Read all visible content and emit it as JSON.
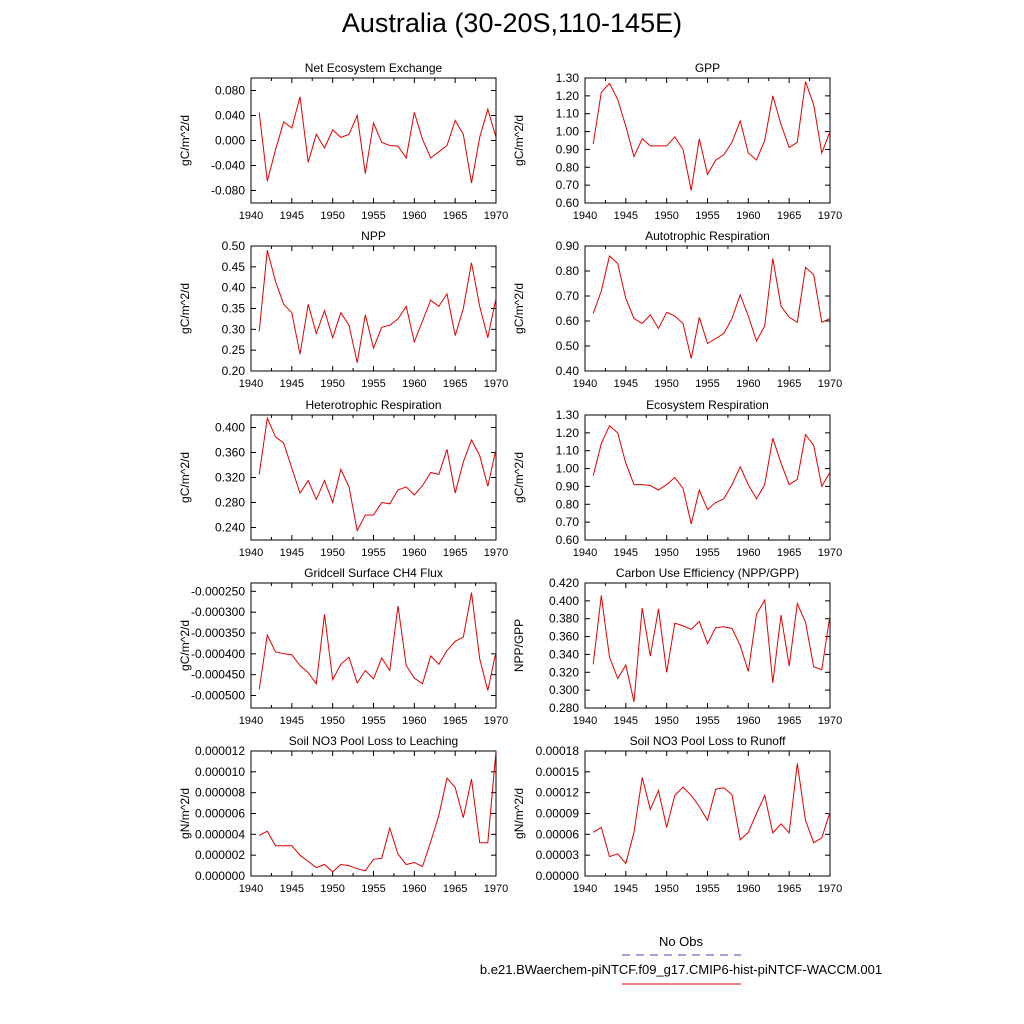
{
  "figure": {
    "title": "Australia (30-20S,110-145E)"
  },
  "legend": {
    "obs_label": "No Obs",
    "obs_color": "#4a4aa8",
    "model_label": "b.e21.BWaerchem-piNTCF.f09_g17.CMIP6-hist-piNTCF-WACCM.001",
    "model_color": "#e00000"
  },
  "chart_data": [
    {
      "type": "line",
      "title": "Net Ecosystem Exchange",
      "ylabel": "gC/m^2/d",
      "xlim": [
        1940,
        1970
      ],
      "ylim": [
        -0.1,
        0.1
      ],
      "xticks": [
        1940,
        1945,
        1950,
        1955,
        1960,
        1965,
        1970
      ],
      "yticks": [
        "0.080",
        "0.040",
        "0.000",
        "-0.040",
        "-0.080"
      ],
      "x": [
        1941,
        1942,
        1943,
        1944,
        1945,
        1946,
        1947,
        1948,
        1949,
        1950,
        1951,
        1952,
        1953,
        1954,
        1955,
        1956,
        1957,
        1958,
        1959,
        1960,
        1961,
        1962,
        1963,
        1964,
        1965,
        1966,
        1967,
        1968,
        1969,
        1970
      ],
      "series": [
        {
          "color": "#e00000",
          "values": [
            0.045,
            -0.065,
            -0.015,
            0.03,
            0.02,
            0.07,
            -0.035,
            0.01,
            -0.012,
            0.017,
            0.005,
            0.01,
            0.04,
            -0.053,
            0.028,
            -0.003,
            -0.008,
            -0.009,
            -0.028,
            0.045,
            0.002,
            -0.028,
            -0.018,
            -0.008,
            0.032,
            0.01,
            -0.068,
            0.005,
            0.05,
            0.005
          ]
        }
      ]
    },
    {
      "type": "line",
      "title": "GPP",
      "ylabel": "gC/m^2/d",
      "xlim": [
        1940,
        1970
      ],
      "ylim": [
        0.6,
        1.3
      ],
      "xticks": [
        1940,
        1945,
        1950,
        1955,
        1960,
        1965,
        1970
      ],
      "yticks": [
        "1.30",
        "1.20",
        "1.10",
        "1.00",
        "0.90",
        "0.80",
        "0.70",
        "0.60"
      ],
      "x": [
        1941,
        1942,
        1943,
        1944,
        1945,
        1946,
        1947,
        1948,
        1949,
        1950,
        1951,
        1952,
        1953,
        1954,
        1955,
        1956,
        1957,
        1958,
        1959,
        1960,
        1961,
        1962,
        1963,
        1964,
        1965,
        1966,
        1967,
        1968,
        1969,
        1970
      ],
      "series": [
        {
          "color": "#e00000",
          "values": [
            0.93,
            1.22,
            1.27,
            1.18,
            1.03,
            0.86,
            0.96,
            0.92,
            0.92,
            0.92,
            0.97,
            0.9,
            0.67,
            0.96,
            0.76,
            0.84,
            0.87,
            0.94,
            1.06,
            0.88,
            0.84,
            0.95,
            1.2,
            1.04,
            0.91,
            0.94,
            1.28,
            1.15,
            0.88,
            1.0
          ]
        }
      ]
    },
    {
      "type": "line",
      "title": "NPP",
      "ylabel": "gC/m^2/d",
      "xlim": [
        1940,
        1970
      ],
      "ylim": [
        0.2,
        0.5
      ],
      "xticks": [
        1940,
        1945,
        1950,
        1955,
        1960,
        1965,
        1970
      ],
      "yticks": [
        "0.50",
        "0.45",
        "0.40",
        "0.35",
        "0.30",
        "0.25",
        "0.20"
      ],
      "x": [
        1941,
        1942,
        1943,
        1944,
        1945,
        1946,
        1947,
        1948,
        1949,
        1950,
        1951,
        1952,
        1953,
        1954,
        1955,
        1956,
        1957,
        1958,
        1959,
        1960,
        1961,
        1962,
        1963,
        1964,
        1965,
        1966,
        1967,
        1968,
        1969,
        1970
      ],
      "series": [
        {
          "color": "#e00000",
          "values": [
            0.295,
            0.49,
            0.415,
            0.36,
            0.34,
            0.24,
            0.36,
            0.29,
            0.345,
            0.28,
            0.34,
            0.31,
            0.22,
            0.335,
            0.255,
            0.305,
            0.31,
            0.325,
            0.355,
            0.27,
            0.32,
            0.37,
            0.355,
            0.385,
            0.285,
            0.35,
            0.46,
            0.355,
            0.28,
            0.375
          ]
        }
      ]
    },
    {
      "type": "line",
      "title": "Autotrophic Respiration",
      "ylabel": "gC/m^2/d",
      "xlim": [
        1940,
        1970
      ],
      "ylim": [
        0.4,
        0.9
      ],
      "xticks": [
        1940,
        1945,
        1950,
        1955,
        1960,
        1965,
        1970
      ],
      "yticks": [
        "0.90",
        "0.80",
        "0.70",
        "0.60",
        "0.50",
        "0.40"
      ],
      "x": [
        1941,
        1942,
        1943,
        1944,
        1945,
        1946,
        1947,
        1948,
        1949,
        1950,
        1951,
        1952,
        1953,
        1954,
        1955,
        1956,
        1957,
        1958,
        1959,
        1960,
        1961,
        1962,
        1963,
        1964,
        1965,
        1966,
        1967,
        1968,
        1969,
        1970
      ],
      "series": [
        {
          "color": "#e00000",
          "values": [
            0.63,
            0.72,
            0.86,
            0.83,
            0.69,
            0.61,
            0.59,
            0.625,
            0.57,
            0.635,
            0.62,
            0.59,
            0.45,
            0.615,
            0.51,
            0.53,
            0.55,
            0.61,
            0.705,
            0.62,
            0.52,
            0.58,
            0.85,
            0.66,
            0.615,
            0.595,
            0.815,
            0.785,
            0.595,
            0.61
          ]
        }
      ]
    },
    {
      "type": "line",
      "title": "Heterotrophic Respiration",
      "ylabel": "gC/m^2/d",
      "xlim": [
        1940,
        1970
      ],
      "ylim": [
        0.22,
        0.42
      ],
      "xticks": [
        1940,
        1945,
        1950,
        1955,
        1960,
        1965,
        1970
      ],
      "yticks": [
        "0.400",
        "0.360",
        "0.320",
        "0.280",
        "0.240"
      ],
      "x": [
        1941,
        1942,
        1943,
        1944,
        1945,
        1946,
        1947,
        1948,
        1949,
        1950,
        1951,
        1952,
        1953,
        1954,
        1955,
        1956,
        1957,
        1958,
        1959,
        1960,
        1961,
        1962,
        1963,
        1964,
        1965,
        1966,
        1967,
        1968,
        1969,
        1970
      ],
      "series": [
        {
          "color": "#e00000",
          "values": [
            0.325,
            0.415,
            0.385,
            0.375,
            0.335,
            0.295,
            0.315,
            0.285,
            0.315,
            0.28,
            0.333,
            0.305,
            0.235,
            0.26,
            0.26,
            0.28,
            0.278,
            0.3,
            0.305,
            0.292,
            0.307,
            0.328,
            0.325,
            0.365,
            0.295,
            0.345,
            0.38,
            0.355,
            0.306,
            0.365
          ]
        }
      ]
    },
    {
      "type": "line",
      "title": "Ecosystem Respiration",
      "ylabel": "gC/m^2/d",
      "xlim": [
        1940,
        1970
      ],
      "ylim": [
        0.6,
        1.3
      ],
      "xticks": [
        1940,
        1945,
        1950,
        1955,
        1960,
        1965,
        1970
      ],
      "yticks": [
        "1.30",
        "1.20",
        "1.10",
        "1.00",
        "0.90",
        "0.80",
        "0.70",
        "0.60"
      ],
      "x": [
        1941,
        1942,
        1943,
        1944,
        1945,
        1946,
        1947,
        1948,
        1949,
        1950,
        1951,
        1952,
        1953,
        1954,
        1955,
        1956,
        1957,
        1958,
        1959,
        1960,
        1961,
        1962,
        1963,
        1964,
        1965,
        1966,
        1967,
        1968,
        1969,
        1970
      ],
      "series": [
        {
          "color": "#e00000",
          "values": [
            0.96,
            1.14,
            1.24,
            1.2,
            1.03,
            0.91,
            0.91,
            0.905,
            0.88,
            0.91,
            0.95,
            0.89,
            0.69,
            0.88,
            0.77,
            0.81,
            0.83,
            0.91,
            1.01,
            0.91,
            0.83,
            0.91,
            1.17,
            1.03,
            0.91,
            0.94,
            1.19,
            1.13,
            0.9,
            0.98
          ]
        }
      ]
    },
    {
      "type": "line",
      "title": "Gridcell Surface CH4 Flux",
      "ylabel": "gC/m^2/d",
      "xlim": [
        1940,
        1970
      ],
      "ylim": [
        -0.00053,
        -0.00023
      ],
      "xticks": [
        1940,
        1945,
        1950,
        1955,
        1960,
        1965,
        1970
      ],
      "yticks": [
        "-0.000250",
        "-0.000300",
        "-0.000350",
        "-0.000400",
        "-0.000450",
        "-0.000500"
      ],
      "x": [
        1941,
        1942,
        1943,
        1944,
        1945,
        1946,
        1947,
        1948,
        1949,
        1950,
        1951,
        1952,
        1953,
        1954,
        1955,
        1956,
        1957,
        1958,
        1959,
        1960,
        1961,
        1962,
        1963,
        1964,
        1965,
        1966,
        1967,
        1968,
        1969,
        1970
      ],
      "series": [
        {
          "color": "#e00000",
          "values": [
            -0.000485,
            -0.000355,
            -0.000395,
            -0.0004,
            -0.000402,
            -0.000428,
            -0.000445,
            -0.000472,
            -0.000305,
            -0.000462,
            -0.000425,
            -0.000408,
            -0.00047,
            -0.00044,
            -0.00046,
            -0.00041,
            -0.00044,
            -0.000285,
            -0.000428,
            -0.000458,
            -0.000472,
            -0.000405,
            -0.000425,
            -0.000392,
            -0.00037,
            -0.00036,
            -0.000253,
            -0.000412,
            -0.000488,
            -0.000395
          ]
        }
      ]
    },
    {
      "type": "line",
      "title": "Carbon Use Efficiency (NPP/GPP)",
      "ylabel": "NPP/GPP",
      "xlim": [
        1940,
        1970
      ],
      "ylim": [
        0.28,
        0.42
      ],
      "xticks": [
        1940,
        1945,
        1950,
        1955,
        1960,
        1965,
        1970
      ],
      "yticks": [
        "0.420",
        "0.400",
        "0.380",
        "0.360",
        "0.340",
        "0.320",
        "0.300",
        "0.280"
      ],
      "x": [
        1941,
        1942,
        1943,
        1944,
        1945,
        1946,
        1947,
        1948,
        1949,
        1950,
        1951,
        1952,
        1953,
        1954,
        1955,
        1956,
        1957,
        1958,
        1959,
        1960,
        1961,
        1962,
        1963,
        1964,
        1965,
        1966,
        1967,
        1968,
        1969,
        1970
      ],
      "series": [
        {
          "color": "#e00000",
          "values": [
            0.329,
            0.406,
            0.337,
            0.313,
            0.328,
            0.287,
            0.392,
            0.338,
            0.391,
            0.32,
            0.375,
            0.372,
            0.368,
            0.377,
            0.352,
            0.37,
            0.371,
            0.369,
            0.35,
            0.321,
            0.385,
            0.401,
            0.308,
            0.384,
            0.327,
            0.397,
            0.376,
            0.326,
            0.323,
            0.384
          ]
        }
      ]
    },
    {
      "type": "line",
      "title": "Soil NO3 Pool Loss to Leaching",
      "ylabel": "gN/m^2/d",
      "xlim": [
        1940,
        1970
      ],
      "ylim": [
        0,
        1.2e-05
      ],
      "xticks": [
        1940,
        1945,
        1950,
        1955,
        1960,
        1965,
        1970
      ],
      "yticks": [
        "0.000012",
        "0.000010",
        "0.000008",
        "0.000006",
        "0.000004",
        "0.000002",
        "0.000000"
      ],
      "x": [
        1941,
        1942,
        1943,
        1944,
        1945,
        1946,
        1947,
        1948,
        1949,
        1950,
        1951,
        1952,
        1953,
        1954,
        1955,
        1956,
        1957,
        1958,
        1959,
        1960,
        1961,
        1962,
        1963,
        1964,
        1965,
        1966,
        1967,
        1968,
        1969,
        1970
      ],
      "series": [
        {
          "color": "#e00000",
          "values": [
            3.9e-06,
            4.3e-06,
            2.9e-06,
            2.9e-06,
            2.9e-06,
            2e-06,
            1.4e-06,
            8e-07,
            1.1e-06,
            4e-07,
            1.1e-06,
            1e-06,
            7e-07,
            5e-07,
            1.6e-06,
            1.7e-06,
            4.6e-06,
            2.1e-06,
            1.1e-06,
            1.3e-06,
            9e-07,
            3.3e-06,
            5.8e-06,
            9.4e-06,
            8.5e-06,
            5.6e-06,
            9.3e-06,
            3.2e-06,
            3.2e-06,
            1.2e-05
          ]
        }
      ]
    },
    {
      "type": "line",
      "title": "Soil NO3 Pool Loss to Runoff",
      "ylabel": "gN/m^2/d",
      "xlim": [
        1940,
        1970
      ],
      "ylim": [
        0,
        0.00018
      ],
      "xticks": [
        1940,
        1945,
        1950,
        1955,
        1960,
        1965,
        1970
      ],
      "yticks": [
        "0.00018",
        "0.00015",
        "0.00012",
        "0.00009",
        "0.00006",
        "0.00003",
        "0.00000"
      ],
      "x": [
        1941,
        1942,
        1943,
        1944,
        1945,
        1946,
        1947,
        1948,
        1949,
        1950,
        1951,
        1952,
        1953,
        1954,
        1955,
        1956,
        1957,
        1958,
        1959,
        1960,
        1961,
        1962,
        1963,
        1964,
        1965,
        1966,
        1967,
        1968,
        1969,
        1970
      ],
      "series": [
        {
          "color": "#e00000",
          "values": [
            6.3e-05,
            7e-05,
            2.8e-05,
            3.2e-05,
            1.8e-05,
            6.3e-05,
            0.000142,
            9.6e-05,
            0.000123,
            7e-05,
            0.000116,
            0.000128,
            0.000116,
            0.0001,
            8e-05,
            0.000125,
            0.000127,
            0.000117,
            5.2e-05,
            6.3e-05,
            9e-05,
            0.000116,
            6.2e-05,
            7.5e-05,
            6.2e-05,
            0.000162,
            8e-05,
            4.8e-05,
            5.5e-05,
            9.2e-05
          ]
        }
      ]
    }
  ]
}
